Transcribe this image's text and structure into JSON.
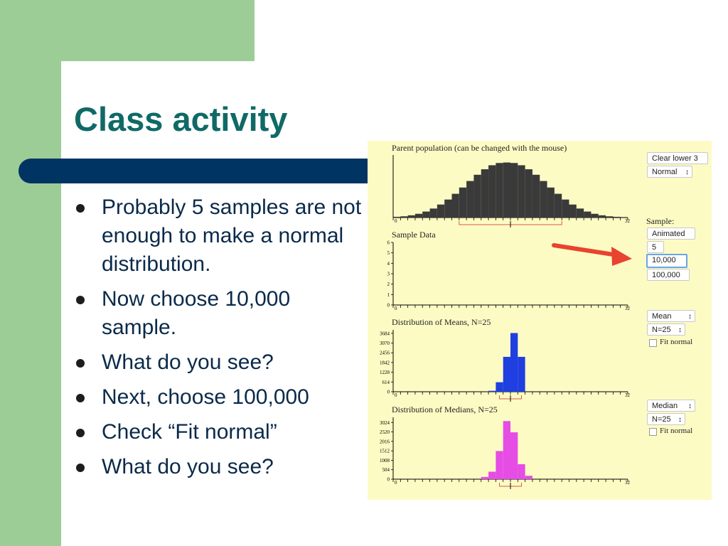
{
  "slide": {
    "title": "Class activity",
    "bullets": [
      "Probably 5 samples are not enough to make a normal distribution.",
      "Now choose 10,000 sample.",
      "What do you see?",
      "Next, choose 100,000",
      "Check “Fit normal”",
      "What do you see?"
    ]
  },
  "applet": {
    "parent_title": "Parent population (can be changed with the mouse)",
    "sample_title": "Sample Data",
    "means_title": "Distribution of Means, N=25",
    "medians_title": "Distribution of Medians, N=25",
    "axis_min": "0",
    "axis_max": "32",
    "clear_button": "Clear lower 3",
    "shape_select": "Normal",
    "sample_label": "Sample:",
    "sample_options": [
      "Animated",
      "5",
      "10,000",
      "100,000"
    ],
    "selected_option": "10,000",
    "mean_select": "Mean",
    "mean_n_select": "N=25",
    "median_select": "Median",
    "median_n_select": "N=25",
    "fit_normal_label": "Fit normal",
    "fit_normal_checked": false,
    "colors": {
      "parent": "#3a3a3a",
      "means": "#1f3fe0",
      "medians": "#e54de5",
      "arrow": "#e8432f",
      "panel": "#fdfbc4"
    }
  },
  "chart_data": [
    {
      "type": "bar",
      "title": "Parent population (can be changed with the mouse)",
      "x": [
        0,
        1,
        2,
        3,
        4,
        5,
        6,
        7,
        8,
        9,
        10,
        11,
        12,
        13,
        14,
        15,
        16,
        17,
        18,
        19,
        20,
        21,
        22,
        23,
        24,
        25,
        26,
        27,
        28,
        29,
        30,
        31
      ],
      "values": [
        0.3,
        0.5,
        0.9,
        1.5,
        2.4,
        3.6,
        5.2,
        7.2,
        9.5,
        12.0,
        14.6,
        17.1,
        19.3,
        20.9,
        21.8,
        22.0,
        21.8,
        20.9,
        19.3,
        17.1,
        14.6,
        12.0,
        9.5,
        7.2,
        5.2,
        3.6,
        2.4,
        1.5,
        0.9,
        0.5,
        0.3,
        0.2
      ],
      "xlim": [
        0,
        32
      ],
      "ylim": [
        0,
        25
      ]
    },
    {
      "type": "bar",
      "title": "Sample Data",
      "y_ticks": [
        0,
        1,
        2,
        3,
        4,
        5,
        6
      ],
      "xlim": [
        0,
        32
      ],
      "ylim": [
        0,
        6
      ],
      "values": []
    },
    {
      "type": "bar",
      "title": "Distribution of Means, N=25",
      "y_ticks": [
        0,
        614,
        1228,
        1842,
        2456,
        3070,
        3684
      ],
      "x": [
        13,
        14,
        15,
        16,
        17
      ],
      "values": [
        60,
        600,
        2200,
        3700,
        2200
      ],
      "xlim": [
        0,
        32
      ],
      "ylim": [
        0,
        3900
      ]
    },
    {
      "type": "bar",
      "title": "Distribution of Medians, N=25",
      "y_ticks": [
        0,
        504,
        1008,
        1512,
        2016,
        2520,
        3024
      ],
      "x": [
        12,
        13,
        14,
        15,
        16,
        17,
        18
      ],
      "values": [
        120,
        400,
        1500,
        3100,
        2500,
        800,
        180
      ],
      "xlim": [
        0,
        32
      ],
      "ylim": [
        0,
        3300
      ]
    }
  ]
}
